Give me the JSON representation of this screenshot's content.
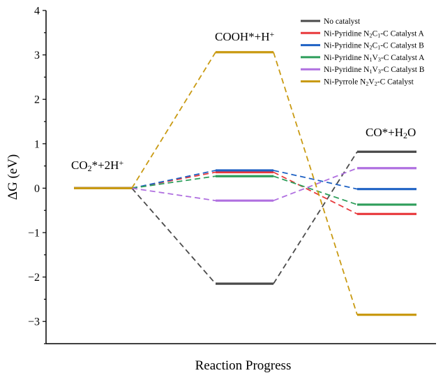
{
  "chart_data": {
    "type": "line",
    "xlabel": "Reaction Progress",
    "ylabel": "ΔG (eV)",
    "ylim": [
      -3.5,
      4
    ],
    "yticks": [
      -3,
      -2,
      -1,
      0,
      1,
      2,
      3,
      4
    ],
    "ytick_labels": [
      "−3",
      "−2",
      "−1",
      "0",
      "1",
      "2",
      "3",
      "4"
    ],
    "grid": false,
    "legend_position": "top-right",
    "states": [
      {
        "key": "s0",
        "parts": [
          [
            "CO",
            "n"
          ],
          [
            "2",
            "sub"
          ],
          [
            "*+2H",
            "n"
          ],
          [
            "+",
            "sup"
          ]
        ]
      },
      {
        "key": "s1",
        "parts": [
          [
            "COOH*+H",
            "n"
          ],
          [
            "+",
            "sup"
          ]
        ]
      },
      {
        "key": "s2",
        "parts": [
          [
            "CO*+H",
            "n"
          ],
          [
            "2",
            "sub"
          ],
          [
            "O",
            "n"
          ]
        ]
      }
    ],
    "series": [
      {
        "name": "No catalyst",
        "legend_parts": [
          [
            "No catalyst",
            "n"
          ]
        ],
        "color": "#4a4a4a",
        "values": [
          0,
          -2.15,
          0.82
        ]
      },
      {
        "name": "Ni-Pyridine N2C1-C Catalyst A",
        "legend_parts": [
          [
            "Ni-Pyridine N",
            "n"
          ],
          [
            "2",
            "sub"
          ],
          [
            "C",
            "n"
          ],
          [
            "1",
            "sub"
          ],
          [
            "-C Catalyst A",
            "n"
          ]
        ],
        "color": "#e8393c",
        "values": [
          0,
          0.36,
          -0.58
        ]
      },
      {
        "name": "Ni-Pyridine N2C1-C Catalyst B",
        "legend_parts": [
          [
            "Ni-Pyridine N",
            "n"
          ],
          [
            "2",
            "sub"
          ],
          [
            "C",
            "n"
          ],
          [
            "1",
            "sub"
          ],
          [
            "-C Catalyst B",
            "n"
          ]
        ],
        "color": "#1f62c4",
        "values": [
          0,
          0.4,
          -0.02
        ]
      },
      {
        "name": "Ni-Pyridine N1V3-C Catalyst A",
        "legend_parts": [
          [
            "Ni-Pyridine N",
            "n"
          ],
          [
            "1",
            "sub"
          ],
          [
            "V",
            "n"
          ],
          [
            "3",
            "sub"
          ],
          [
            "-C Catalyst A",
            "n"
          ]
        ],
        "color": "#2e9e5b",
        "values": [
          0,
          0.27,
          -0.37
        ]
      },
      {
        "name": "Ni-Pyridine N1V3-C Catalyst B",
        "legend_parts": [
          [
            "Ni-Pyridine N",
            "n"
          ],
          [
            "1",
            "sub"
          ],
          [
            "V",
            "n"
          ],
          [
            "3",
            "sub"
          ],
          [
            "-C Catalyst B",
            "n"
          ]
        ],
        "color": "#b070e0",
        "values": [
          0,
          -0.28,
          0.45
        ]
      },
      {
        "name": "Ni-Pyrrole N2V2-C Catalyst",
        "legend_parts": [
          [
            "Ni-Pyrrole N",
            "n"
          ],
          [
            "2",
            "sub"
          ],
          [
            "V",
            "n"
          ],
          [
            "2",
            "sub"
          ],
          [
            "-C Catalyst",
            "n"
          ]
        ],
        "color": "#c99a12",
        "values": [
          0,
          3.06,
          -2.85
        ]
      }
    ]
  }
}
